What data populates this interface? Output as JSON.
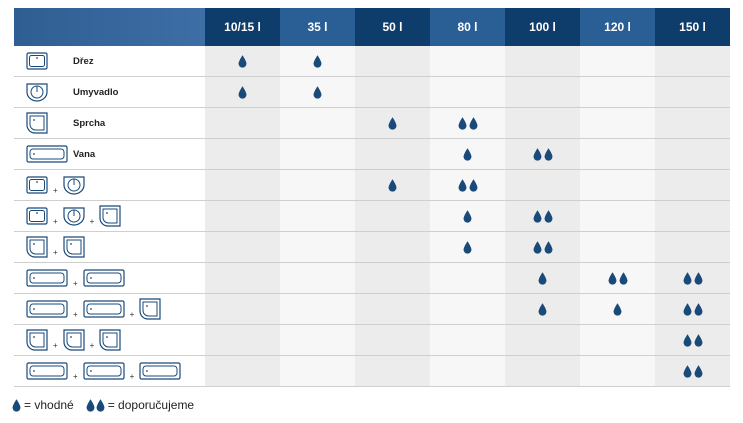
{
  "columns": [
    "10/15 l",
    "35 l",
    "50 l",
    "80 l",
    "100 l",
    "120 l",
    "150 l"
  ],
  "rows": [
    {
      "label": "Dřez",
      "icons": [
        "sink"
      ],
      "values": [
        1,
        1,
        0,
        0,
        0,
        0,
        0
      ]
    },
    {
      "label": "Umyvadlo",
      "icons": [
        "basin"
      ],
      "values": [
        1,
        1,
        0,
        0,
        0,
        0,
        0
      ]
    },
    {
      "label": "Sprcha",
      "icons": [
        "shower"
      ],
      "values": [
        0,
        0,
        1,
        2,
        0,
        0,
        0
      ]
    },
    {
      "label": "Vana",
      "icons": [
        "bath"
      ],
      "values": [
        0,
        0,
        0,
        1,
        2,
        0,
        0
      ]
    },
    {
      "label": "",
      "icons": [
        "sink",
        "basin"
      ],
      "values": [
        0,
        0,
        1,
        2,
        0,
        0,
        0
      ]
    },
    {
      "label": "",
      "icons": [
        "sink",
        "basin",
        "shower"
      ],
      "values": [
        0,
        0,
        0,
        1,
        2,
        0,
        0
      ]
    },
    {
      "label": "",
      "icons": [
        "shower",
        "shower"
      ],
      "values": [
        0,
        0,
        0,
        1,
        2,
        0,
        0
      ]
    },
    {
      "label": "",
      "icons": [
        "bath",
        "bath"
      ],
      "values": [
        0,
        0,
        0,
        0,
        1,
        2,
        2
      ]
    },
    {
      "label": "",
      "icons": [
        "bath",
        "bath",
        "shower"
      ],
      "values": [
        0,
        0,
        0,
        0,
        1,
        1,
        2
      ]
    },
    {
      "label": "",
      "icons": [
        "shower",
        "shower",
        "shower"
      ],
      "values": [
        0,
        0,
        0,
        0,
        0,
        0,
        2
      ]
    },
    {
      "label": "",
      "icons": [
        "bath",
        "bath",
        "bath"
      ],
      "values": [
        0,
        0,
        0,
        0,
        0,
        0,
        2
      ]
    }
  ],
  "plus_sign": "+",
  "legend": {
    "single": "= vhodné",
    "double": "= doporučujeme"
  },
  "colors": {
    "drop": "#1a4a7a",
    "header_dark": "#0f3d6b",
    "header_light": "#2a5f96"
  }
}
